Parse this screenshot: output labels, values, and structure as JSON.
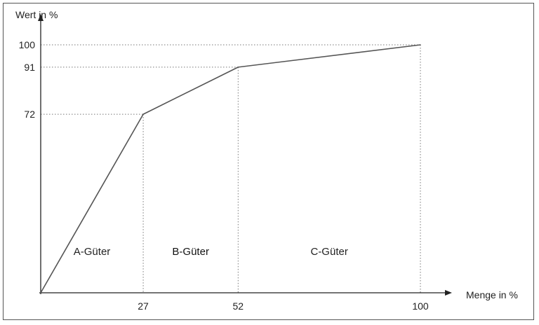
{
  "chart_data": {
    "type": "line",
    "title": "",
    "xlabel": "Menge in %",
    "ylabel": "Wert in %",
    "xlim": [
      0,
      100
    ],
    "ylim": [
      0,
      100
    ],
    "grid": false,
    "series": [
      {
        "x": [
          0,
          27,
          52,
          100
        ],
        "y": [
          0,
          72,
          91,
          100
        ]
      }
    ],
    "x_ticks": [
      "27",
      "52",
      "100"
    ],
    "y_ticks": [
      "100",
      "91",
      "72"
    ],
    "guide_lines": "dotted",
    "regions": [
      {
        "label": "A-Güter",
        "x_from": 0,
        "x_to": 27
      },
      {
        "label": "B-Güter",
        "x_from": 27,
        "x_to": 52
      },
      {
        "label": "C-Güter",
        "x_from": 52,
        "x_to": 100
      }
    ],
    "colors": {
      "line": "#555555",
      "axis": "#222222",
      "guide": "#777777",
      "frame": "#555555"
    }
  }
}
